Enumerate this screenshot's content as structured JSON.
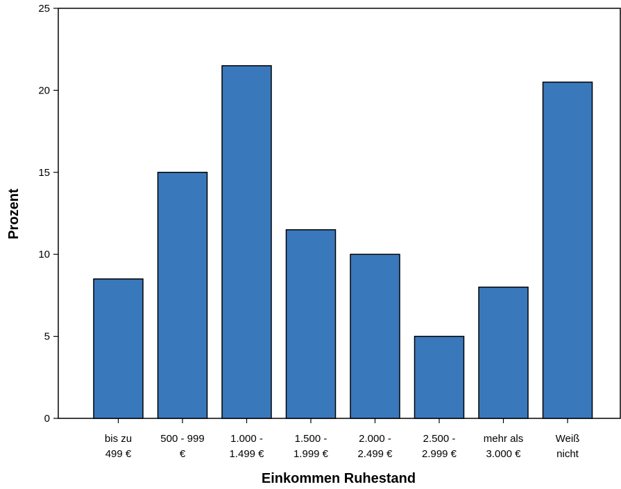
{
  "chart_data": {
    "type": "bar",
    "title": "",
    "xlabel": "Einkommen Ruhestand",
    "ylabel": "Prozent",
    "ylim": [
      0,
      25
    ],
    "yticks": [
      0,
      5,
      10,
      15,
      20,
      25
    ],
    "grid": false,
    "legend": "none",
    "bar_color": "#3a78bc",
    "categories": [
      [
        "bis zu",
        "499 €"
      ],
      [
        "500 - 999",
        "€"
      ],
      [
        "1.000 -",
        "1.499 €"
      ],
      [
        "1.500 -",
        "1.999 €"
      ],
      [
        "2.000 -",
        "2.499 €"
      ],
      [
        "2.500 -",
        "2.999 €"
      ],
      [
        "mehr als",
        "3.000 €"
      ],
      [
        "Weiß",
        "nicht"
      ]
    ],
    "values": [
      8.5,
      15,
      21.5,
      11.5,
      10,
      5,
      8,
      20.5
    ]
  }
}
